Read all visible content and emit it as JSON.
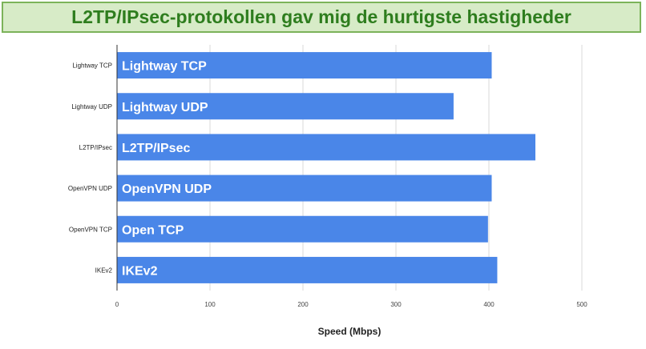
{
  "chart_data": {
    "type": "bar",
    "orientation": "horizontal",
    "title": "L2TP/IPsec-protokollen gav mig de hurtigste hastigheder",
    "xlabel": "Speed (Mbps)",
    "ylabel": "",
    "categories": [
      "Lightway TCP",
      "Lightway UDP",
      "L2TP/IPsec",
      "OpenVPN UDP",
      "OpenVPN TCP",
      "IKEv2"
    ],
    "data_labels": [
      "Lightway TCP",
      "Lightway UDP",
      "L2TP/IPsec",
      "OpenVPN UDP",
      "Open TCP",
      "IKEv2"
    ],
    "values": [
      403,
      362,
      450,
      403,
      399,
      409
    ],
    "xlim": [
      0,
      500
    ],
    "xticks": [
      "0",
      "100",
      "200",
      "300",
      "400",
      "500"
    ],
    "grid": true,
    "legend": "none",
    "bar_color": "#4a86e8"
  },
  "colors": {
    "banner_bg": "#d7ebc7",
    "banner_border": "#7cb35a",
    "banner_text": "#2e7d1e",
    "grid": "#d9d9d9",
    "axis": "#333333"
  }
}
